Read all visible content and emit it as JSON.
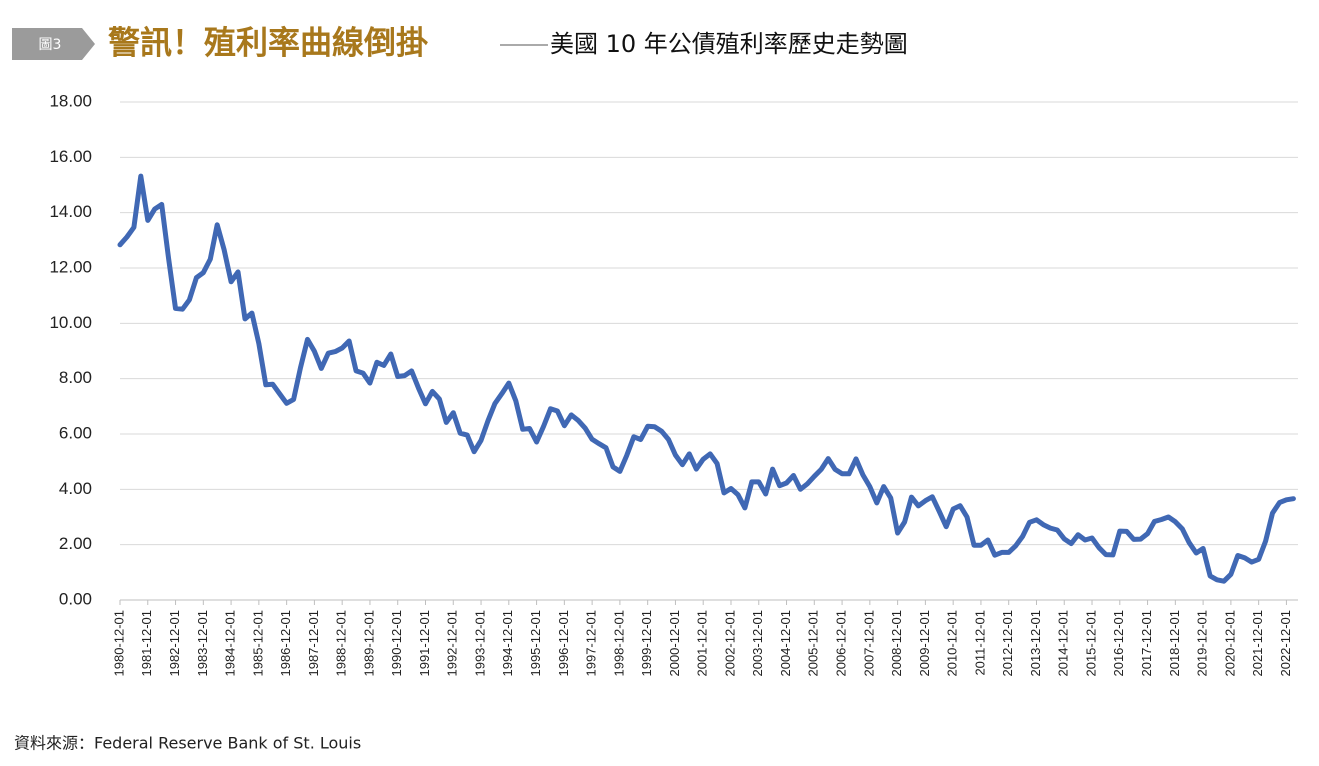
{
  "header": {
    "tag": "圖3",
    "title": "警訊！殖利率曲線倒掛",
    "subtitle": "美國 10 年公債殖利率歷史走勢圖"
  },
  "source": "資料來源：Federal Reserve Bank of St. Louis",
  "chart_data": {
    "type": "line",
    "color": "#4068b4",
    "grid": true,
    "x": [
      "1980-12-01",
      "1981-03-01",
      "1981-06-01",
      "1981-09-01",
      "1981-12-01",
      "1982-03-01",
      "1982-06-01",
      "1982-09-01",
      "1982-12-01",
      "1983-03-01",
      "1983-06-01",
      "1983-09-01",
      "1983-12-01",
      "1984-03-01",
      "1984-06-01",
      "1984-09-01",
      "1984-12-01",
      "1985-03-01",
      "1985-06-01",
      "1985-09-01",
      "1985-12-01",
      "1986-03-01",
      "1986-06-01",
      "1986-09-01",
      "1986-12-01",
      "1987-03-01",
      "1987-06-01",
      "1987-09-01",
      "1987-12-01",
      "1988-03-01",
      "1988-06-01",
      "1988-09-01",
      "1988-12-01",
      "1989-03-01",
      "1989-06-01",
      "1989-09-01",
      "1989-12-01",
      "1990-03-01",
      "1990-06-01",
      "1990-09-01",
      "1990-12-01",
      "1991-03-01",
      "1991-06-01",
      "1991-09-01",
      "1991-12-01",
      "1992-03-01",
      "1992-06-01",
      "1992-09-01",
      "1992-12-01",
      "1993-03-01",
      "1993-06-01",
      "1993-09-01",
      "1993-12-01",
      "1994-03-01",
      "1994-06-01",
      "1994-09-01",
      "1994-12-01",
      "1995-03-01",
      "1995-06-01",
      "1995-09-01",
      "1995-12-01",
      "1996-03-01",
      "1996-06-01",
      "1996-09-01",
      "1996-12-01",
      "1997-03-01",
      "1997-06-01",
      "1997-09-01",
      "1997-12-01",
      "1998-03-01",
      "1998-06-01",
      "1998-09-01",
      "1998-12-01",
      "1999-03-01",
      "1999-06-01",
      "1999-09-01",
      "1999-12-01",
      "2000-03-01",
      "2000-06-01",
      "2000-09-01",
      "2000-12-01",
      "2001-03-01",
      "2001-06-01",
      "2001-09-01",
      "2001-12-01",
      "2002-03-01",
      "2002-06-01",
      "2002-09-01",
      "2002-12-01",
      "2003-03-01",
      "2003-06-01",
      "2003-09-01",
      "2003-12-01",
      "2004-03-01",
      "2004-06-01",
      "2004-09-01",
      "2004-12-01",
      "2005-03-01",
      "2005-06-01",
      "2005-09-01",
      "2005-12-01",
      "2006-03-01",
      "2006-06-01",
      "2006-09-01",
      "2006-12-01",
      "2007-03-01",
      "2007-06-01",
      "2007-09-01",
      "2007-12-01",
      "2008-03-01",
      "2008-06-01",
      "2008-09-01",
      "2008-12-01",
      "2009-03-01",
      "2009-06-01",
      "2009-09-01",
      "2009-12-01",
      "2010-03-01",
      "2010-06-01",
      "2010-09-01",
      "2010-12-01",
      "2011-03-01",
      "2011-06-01",
      "2011-09-01",
      "2011-12-01",
      "2012-03-01",
      "2012-06-01",
      "2012-09-01",
      "2012-12-01",
      "2013-03-01",
      "2013-06-01",
      "2013-09-01",
      "2013-12-01",
      "2014-03-01",
      "2014-06-01",
      "2014-09-01",
      "2014-12-01",
      "2015-03-01",
      "2015-06-01",
      "2015-09-01",
      "2015-12-01",
      "2016-03-01",
      "2016-06-01",
      "2016-09-01",
      "2016-12-01",
      "2017-03-01",
      "2017-06-01",
      "2017-09-01",
      "2017-12-01",
      "2018-03-01",
      "2018-06-01",
      "2018-09-01",
      "2018-12-01",
      "2019-03-01",
      "2019-06-01",
      "2019-09-01",
      "2019-12-01",
      "2020-03-01",
      "2020-06-01",
      "2020-09-01",
      "2020-12-01",
      "2021-03-01",
      "2021-06-01",
      "2021-09-01",
      "2021-12-01",
      "2022-03-01",
      "2022-06-01",
      "2022-09-01",
      "2022-12-01",
      "2023-03-01"
    ],
    "values": [
      12.84,
      13.12,
      13.47,
      15.32,
      13.72,
      14.13,
      14.3,
      12.34,
      10.54,
      10.51,
      10.85,
      11.65,
      11.83,
      12.32,
      13.56,
      12.66,
      11.5,
      11.86,
      10.16,
      10.37,
      9.26,
      7.78,
      7.8,
      7.45,
      7.11,
      7.25,
      8.4,
      9.42,
      8.99,
      8.37,
      8.92,
      8.98,
      9.11,
      9.36,
      8.28,
      8.2,
      7.84,
      8.59,
      8.48,
      8.89,
      8.08,
      8.11,
      8.28,
      7.65,
      7.09,
      7.54,
      7.26,
      6.42,
      6.77,
      6.03,
      5.96,
      5.36,
      5.77,
      6.48,
      7.1,
      7.46,
      7.84,
      7.2,
      6.17,
      6.2,
      5.71,
      6.27,
      6.91,
      6.83,
      6.3,
      6.69,
      6.49,
      6.21,
      5.81,
      5.65,
      5.5,
      4.81,
      4.65,
      5.23,
      5.9,
      5.8,
      6.28,
      6.26,
      6.1,
      5.8,
      5.24,
      4.89,
      5.28,
      4.73,
      5.09,
      5.28,
      4.93,
      3.87,
      4.03,
      3.81,
      3.33,
      4.27,
      4.27,
      3.83,
      4.73,
      4.13,
      4.23,
      4.5,
      4.0,
      4.2,
      4.47,
      4.72,
      5.11,
      4.72,
      4.56,
      4.56,
      5.1,
      4.52,
      4.1,
      3.51,
      4.1,
      3.69,
      2.42,
      2.82,
      3.72,
      3.4,
      3.59,
      3.73,
      3.2,
      2.65,
      3.29,
      3.41,
      3.0,
      1.98,
      1.98,
      2.17,
      1.62,
      1.72,
      1.72,
      1.96,
      2.3,
      2.81,
      2.9,
      2.72,
      2.6,
      2.53,
      2.21,
      2.04,
      2.36,
      2.17,
      2.24,
      1.89,
      1.64,
      1.63,
      2.49,
      2.48,
      2.19,
      2.2,
      2.4,
      2.84,
      2.91,
      3.0,
      2.83,
      2.57,
      2.07,
      1.7,
      1.86,
      0.87,
      0.73,
      0.68,
      0.93,
      1.61,
      1.52,
      1.37,
      1.47,
      2.13,
      3.14,
      3.52,
      3.62,
      3.66
    ],
    "xlim": [
      "1980-12-01",
      "2023-05-01"
    ],
    "xticks": [
      "1980-12-01",
      "1981-12-01",
      "1982-12-01",
      "1983-12-01",
      "1984-12-01",
      "1985-12-01",
      "1986-12-01",
      "1987-12-01",
      "1988-12-01",
      "1989-12-01",
      "1990-12-01",
      "1991-12-01",
      "1992-12-01",
      "1993-12-01",
      "1994-12-01",
      "1995-12-01",
      "1996-12-01",
      "1997-12-01",
      "1998-12-01",
      "1999-12-01",
      "2000-12-01",
      "2001-12-01",
      "2002-12-01",
      "2003-12-01",
      "2004-12-01",
      "2005-12-01",
      "2006-12-01",
      "2007-12-01",
      "2008-12-01",
      "2009-12-01",
      "2010-12-01",
      "2011-12-01",
      "2012-12-01",
      "2013-12-01",
      "2014-12-01",
      "2015-12-01",
      "2016-12-01",
      "2017-12-01",
      "2018-12-01",
      "2019-12-01",
      "2020-12-01",
      "2021-12-01",
      "2022-12-01"
    ],
    "ylim": [
      0,
      18
    ],
    "yticks": [
      {
        "value": 0,
        "label": "0.00"
      },
      {
        "value": 2,
        "label": "2.00"
      },
      {
        "value": 4,
        "label": "4.00"
      },
      {
        "value": 6,
        "label": "6.00"
      },
      {
        "value": 8,
        "label": "8.00"
      },
      {
        "value": 10,
        "label": "10.00"
      },
      {
        "value": 12,
        "label": "12.00"
      },
      {
        "value": 14,
        "label": "14.00"
      },
      {
        "value": 16,
        "label": "16.00"
      },
      {
        "value": 18,
        "label": "18.00"
      }
    ]
  }
}
